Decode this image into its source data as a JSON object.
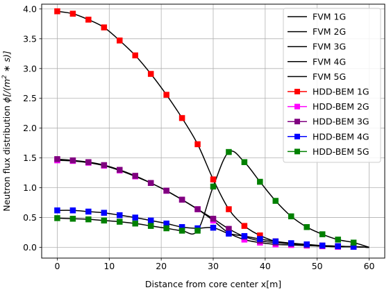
{
  "chart_data": {
    "type": "line",
    "xlabel": "Distance from core center x[m]",
    "ylabel_main": "Neutron flux distribution ",
    "ylabel_math": "ϕ[/(m",
    "ylabel_sup": "2",
    "ylabel_tail": " ∗ s)]",
    "xlim": [
      -3,
      63
    ],
    "ylim": [
      -0.18,
      4.08
    ],
    "xticks": [
      "0",
      "10",
      "20",
      "30",
      "40",
      "50",
      "60"
    ],
    "yticks": [
      "0.0",
      "0.5",
      "1.0",
      "1.5",
      "2.0",
      "2.5",
      "3.0",
      "3.5",
      "4.0"
    ],
    "grid": true,
    "legend_position": "top-right",
    "x": [
      0,
      3,
      6,
      9,
      12,
      15,
      18,
      21,
      24,
      27,
      30,
      33,
      36,
      39,
      42,
      45,
      48,
      51,
      54,
      57,
      60
    ],
    "fvm_series": [
      {
        "name": "FVM 1G",
        "color": "#000000",
        "values": [
          3.96,
          3.92,
          3.82,
          3.69,
          3.47,
          3.22,
          2.91,
          2.56,
          2.17,
          1.73,
          1.14,
          0.64,
          0.36,
          0.2,
          0.1,
          0.06,
          0.04,
          0.02,
          0.01,
          0.01,
          0.0
        ]
      },
      {
        "name": "FVM 2G",
        "color": "#000000",
        "values": [
          1.46,
          1.45,
          1.42,
          1.37,
          1.29,
          1.19,
          1.08,
          0.95,
          0.8,
          0.64,
          0.45,
          0.24,
          0.13,
          0.08,
          0.05,
          0.04,
          0.03,
          0.02,
          0.01,
          0.01,
          0.0
        ]
      },
      {
        "name": "FVM 3G",
        "color": "#000000",
        "values": [
          1.48,
          1.46,
          1.43,
          1.38,
          1.3,
          1.2,
          1.08,
          0.95,
          0.8,
          0.64,
          0.48,
          0.31,
          0.18,
          0.11,
          0.08,
          0.06,
          0.04,
          0.03,
          0.02,
          0.01,
          0.0
        ]
      },
      {
        "name": "FVM 4G",
        "color": "#000000",
        "values": [
          0.62,
          0.62,
          0.6,
          0.58,
          0.54,
          0.5,
          0.45,
          0.4,
          0.34,
          0.32,
          0.33,
          0.23,
          0.19,
          0.14,
          0.1,
          0.07,
          0.05,
          0.03,
          0.02,
          0.01,
          0.0
        ]
      },
      {
        "name": "FVM 5G",
        "color": "#000000",
        "values": [
          0.49,
          0.48,
          0.47,
          0.45,
          0.43,
          0.4,
          0.36,
          0.32,
          0.28,
          0.28,
          1.02,
          1.6,
          1.43,
          1.1,
          0.78,
          0.52,
          0.34,
          0.22,
          0.13,
          0.08,
          0.0
        ]
      }
    ],
    "hdd_x": [
      0,
      3,
      6,
      9,
      12,
      15,
      18,
      21,
      24,
      27,
      30,
      33,
      36,
      39,
      42,
      45,
      48,
      51,
      54,
      57
    ],
    "hdd_series": [
      {
        "name": "HDD-BEM 1G",
        "color": "#ff0000",
        "values": [
          3.96,
          3.92,
          3.82,
          3.69,
          3.47,
          3.22,
          2.91,
          2.56,
          2.17,
          1.73,
          1.14,
          0.64,
          0.36,
          0.2,
          0.1,
          0.06,
          0.04,
          0.02,
          0.01,
          0.01
        ]
      },
      {
        "name": "HDD-BEM 2G",
        "color": "#ff00ff",
        "values": [
          1.46,
          1.45,
          1.42,
          1.37,
          1.29,
          1.19,
          1.08,
          0.95,
          0.8,
          0.64,
          0.45,
          0.24,
          0.13,
          0.08,
          0.05,
          0.04,
          0.03,
          0.02,
          0.01,
          0.01
        ]
      },
      {
        "name": "HDD-BEM 3G",
        "color": "#800080",
        "values": [
          1.48,
          1.46,
          1.43,
          1.38,
          1.3,
          1.2,
          1.08,
          0.95,
          0.8,
          0.64,
          0.48,
          0.31,
          0.18,
          0.11,
          0.08,
          0.06,
          0.04,
          0.03,
          0.02,
          0.01
        ]
      },
      {
        "name": "HDD-BEM 4G",
        "color": "#0000ff",
        "values": [
          0.62,
          0.62,
          0.6,
          0.58,
          0.54,
          0.5,
          0.45,
          0.4,
          0.34,
          0.32,
          0.33,
          0.23,
          0.19,
          0.14,
          0.1,
          0.07,
          0.05,
          0.03,
          0.02,
          0.01
        ]
      },
      {
        "name": "HDD-BEM 5G",
        "color": "#008000",
        "values": [
          0.49,
          0.48,
          0.47,
          0.45,
          0.43,
          0.4,
          0.36,
          0.32,
          0.28,
          0.28,
          1.02,
          1.6,
          1.43,
          1.1,
          0.78,
          0.52,
          0.34,
          0.22,
          0.13,
          0.08
        ]
      }
    ]
  }
}
